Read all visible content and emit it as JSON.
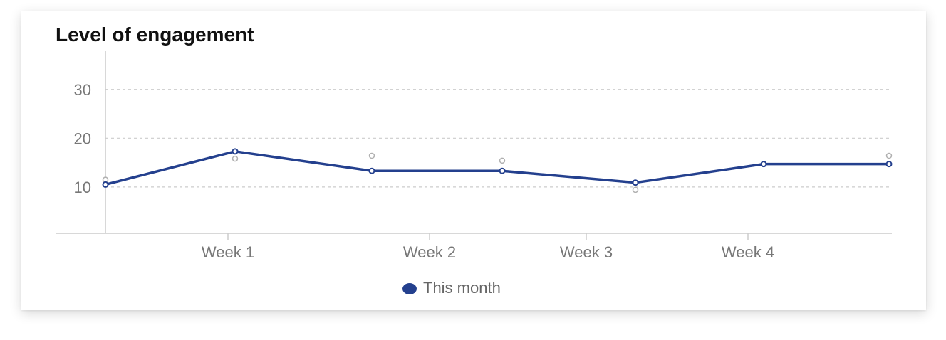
{
  "chart_data": {
    "type": "line",
    "title": "Level of engagement",
    "xlabel": "",
    "ylabel": "",
    "x_ticks": [
      "Week 1",
      "Week 2",
      "Week 3",
      "Week 4"
    ],
    "y_ticks": [
      10,
      20,
      30
    ],
    "grid": "horizontal dashed",
    "legend_placement": "bottom-center",
    "series": [
      {
        "name": "This month",
        "color": "#24408e",
        "values": [
          10.5,
          17.3,
          13.3,
          13.3,
          10.9,
          14.7,
          14.7
        ]
      },
      {
        "color": "#b0b0b0",
        "values": [
          11.5,
          15.8,
          16.4,
          15.4,
          9.4,
          14.7,
          16.4
        ]
      }
    ]
  }
}
